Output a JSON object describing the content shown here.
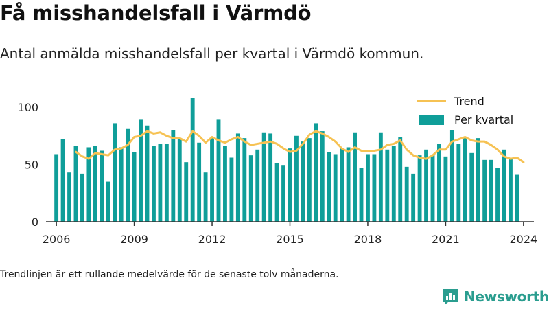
{
  "header": {
    "title": "Få misshandelsfall i Värmdö",
    "subtitle": "Antal anmälda misshandelsfall per kvartal i Värmdö kommun."
  },
  "footer": {
    "note": "Trendlinjen är ett rullande medelvärde för de senaste tolv månaderna.",
    "brand": "Newsworthy"
  },
  "colors": {
    "bars": "#0f9e99",
    "trend": "#f6c253",
    "axis": "#333333"
  },
  "chart_data": {
    "type": "bar",
    "grid": false,
    "legend_position": "top-right",
    "xlim": [
      2005.6,
      2024.4
    ],
    "ylim": [
      0,
      112
    ],
    "x_ticks": [
      2006,
      2009,
      2012,
      2015,
      2018,
      2021,
      2024
    ],
    "y_ticks": [
      0,
      50,
      100
    ],
    "legend": {
      "trend": "Trend",
      "bars": "Per kvartal"
    },
    "series": [
      {
        "name": "Per kvartal",
        "start_year": 2006,
        "periods_per_year": 4,
        "values": [
          59,
          72,
          43,
          66,
          42,
          65,
          66,
          62,
          35,
          86,
          65,
          81,
          61,
          89,
          84,
          66,
          68,
          68,
          80,
          72,
          52,
          108,
          69,
          43,
          73,
          89,
          66,
          56,
          77,
          73,
          58,
          63,
          78,
          77,
          51,
          49,
          64,
          75,
          70,
          73,
          86,
          79,
          61,
          59,
          64,
          65,
          78,
          47,
          59,
          59,
          78,
          63,
          66,
          74,
          48,
          42,
          58,
          63,
          58,
          68,
          57,
          80,
          68,
          74,
          60,
          73,
          54,
          54,
          47,
          63,
          55,
          41
        ]
      },
      {
        "name": "Trend",
        "start_year": 2006.75,
        "periods_per_year": 4,
        "values": [
          61,
          57,
          55,
          60,
          59,
          58,
          63,
          64,
          67,
          74,
          75,
          79,
          77,
          78,
          75,
          73,
          73,
          70,
          79,
          75,
          69,
          74,
          71,
          69,
          72,
          74,
          70,
          67,
          68,
          69,
          70,
          68,
          64,
          61,
          62,
          68,
          76,
          79,
          77,
          74,
          70,
          64,
          61,
          65,
          62,
          62,
          62,
          63,
          67,
          68,
          71,
          63,
          58,
          56,
          55,
          58,
          63,
          63,
          70,
          72,
          74,
          71,
          70,
          70,
          67,
          63,
          57,
          55,
          56,
          52
        ]
      }
    ]
  }
}
